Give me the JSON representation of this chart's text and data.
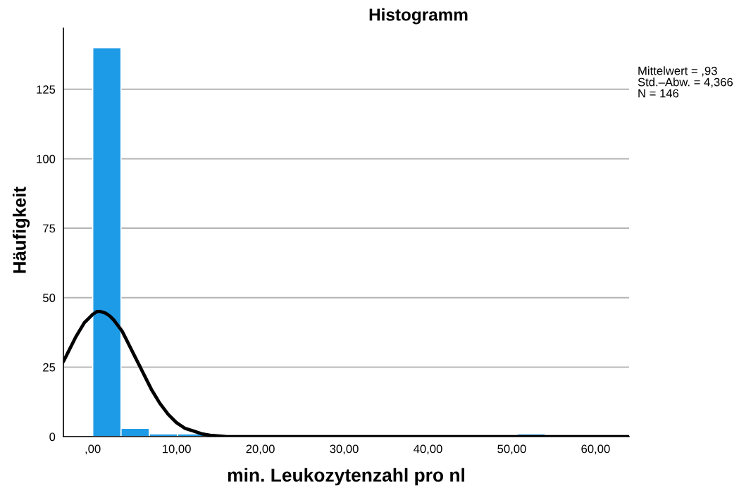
{
  "chart_data": {
    "type": "histogram",
    "title": "Histogramm",
    "xlabel": "min. Leukozytenzahl pro nl",
    "ylabel": "Häufigkeit",
    "bins": [
      0,
      3.375,
      6.75,
      10.125,
      13.5,
      16.875,
      20.25,
      23.625,
      27,
      30.375,
      33.75,
      37.125,
      40.5,
      43.875,
      47.25,
      50.625,
      54
    ],
    "series": [
      {
        "color": "#1e9be6",
        "values": [
          140,
          3,
          1,
          1,
          0,
          0,
          0,
          0,
          0,
          0,
          0,
          0,
          0,
          0,
          0,
          1
        ]
      },
      {
        "type": "line",
        "color": "#000000",
        "line_style": "solid",
        "x": [
          -3.5,
          -3,
          -2.5,
          -2,
          -1.5,
          -1,
          -0.5,
          0,
          0.5,
          0.93,
          1.5,
          2,
          2.5,
          3,
          3.5,
          4,
          4.5,
          5,
          5.5,
          6,
          6.5,
          7,
          7.5,
          8,
          9,
          10,
          11,
          12,
          13,
          14,
          16,
          18,
          20,
          64
        ],
        "values": [
          27,
          30,
          33,
          36,
          38.5,
          41,
          42.5,
          44,
          45,
          45,
          44.5,
          43.5,
          42,
          40,
          38,
          35,
          32,
          29,
          26,
          23,
          20,
          17,
          14.5,
          12,
          8,
          5,
          3,
          2,
          1,
          0.5,
          0,
          0,
          0,
          0
        ]
      }
    ],
    "xlim": [
      -3.5,
      64
    ],
    "xticks": [
      {
        "value": 0,
        "label": ",00"
      },
      {
        "value": 10,
        "label": "10,00"
      },
      {
        "value": 20,
        "label": "20,00"
      },
      {
        "value": 30,
        "label": "30,00"
      },
      {
        "value": 40,
        "label": "40,00"
      },
      {
        "value": 50,
        "label": "50,00"
      },
      {
        "value": 60,
        "label": "60,00"
      }
    ],
    "ylim": [
      0,
      147
    ],
    "yticks": [
      0,
      25,
      50,
      75,
      100,
      125
    ],
    "grid": "y",
    "annotations": [
      "Mittelwert = ,93",
      "Std.–Abw. = 4,366",
      "N = 146"
    ]
  }
}
